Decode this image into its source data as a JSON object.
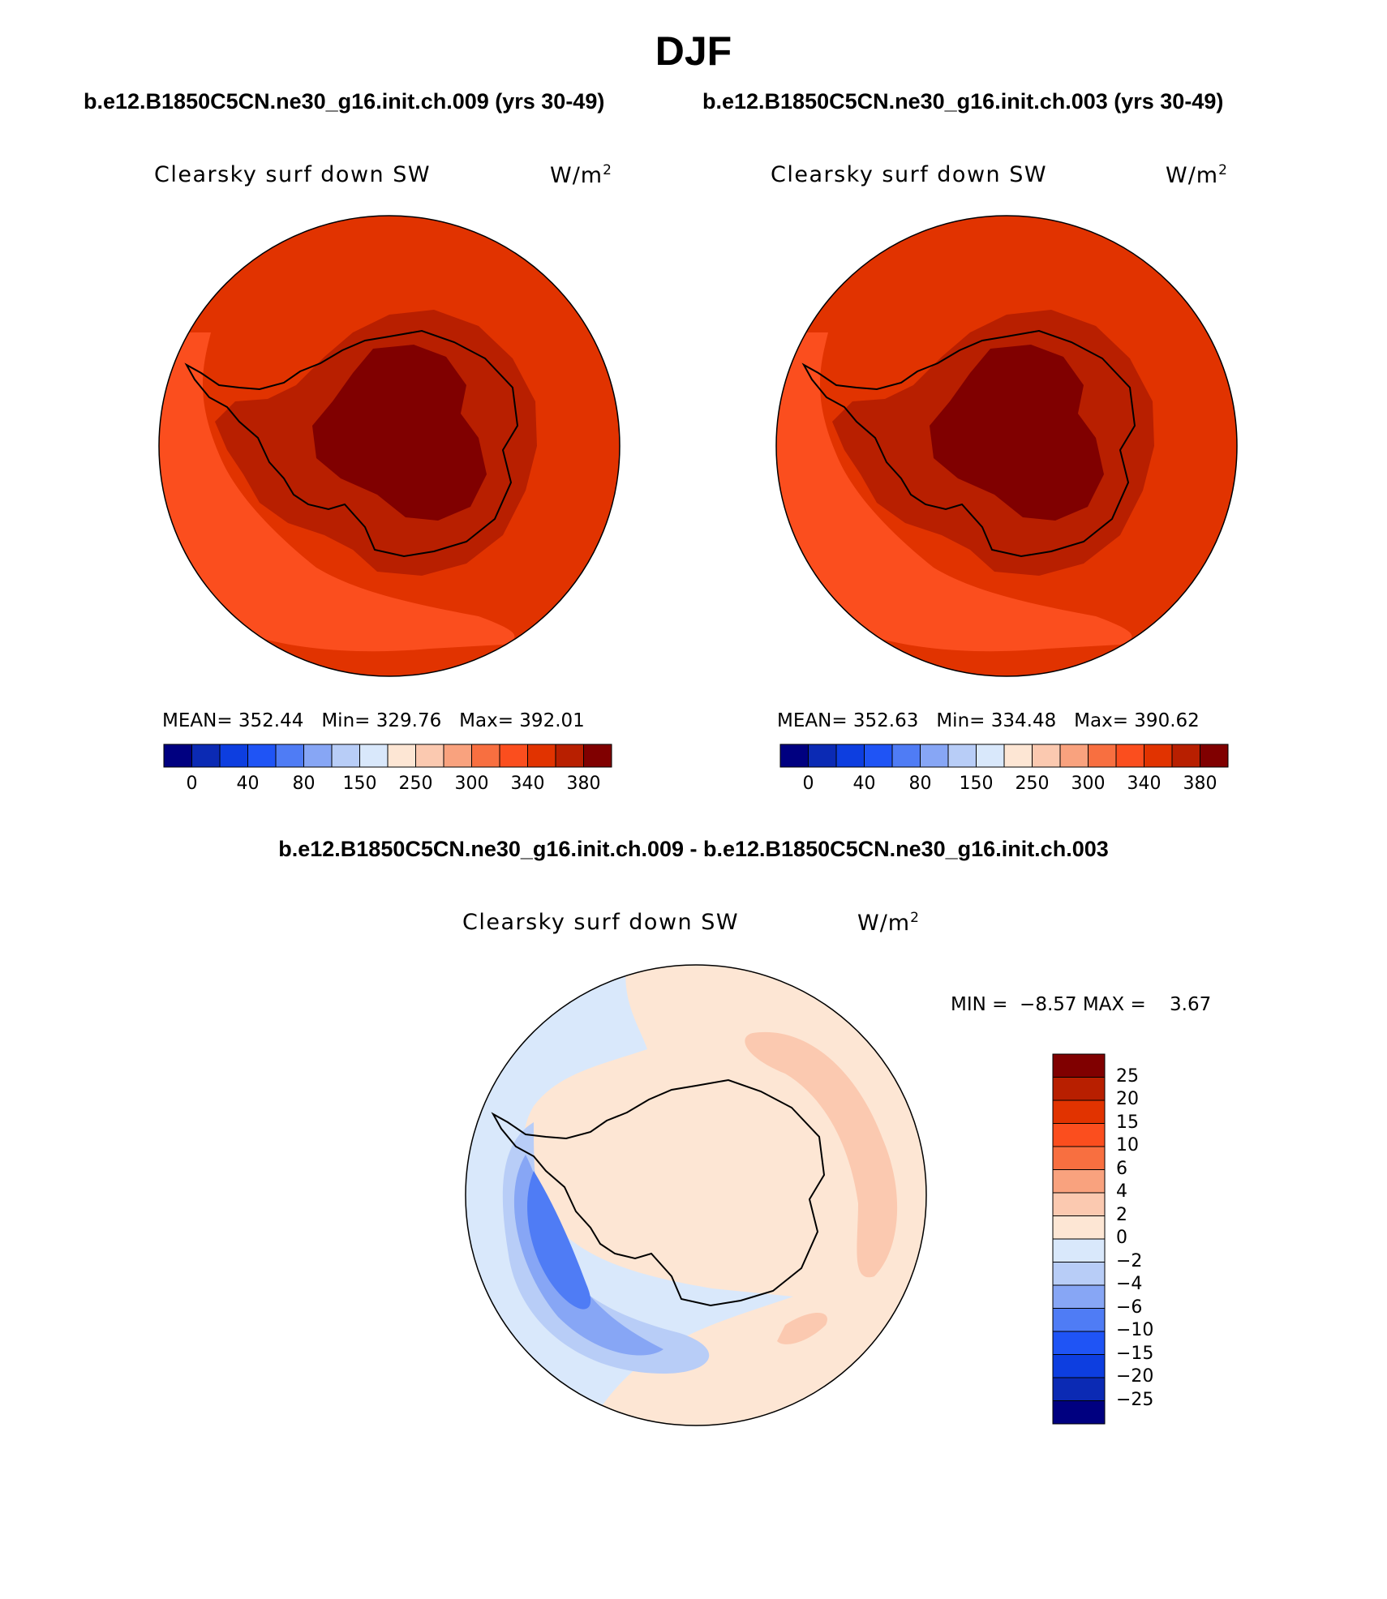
{
  "figure": {
    "title": "DJF",
    "left_case": "b.e12.B1850C5CN.ne30_g16.init.ch.009 (yrs 30-49)",
    "right_case": "b.e12.B1850C5CN.ne30_g16.init.ch.003 (yrs 30-49)",
    "diff_title": "b.e12.B1850C5CN.ne30_g16.init.ch.009 - b.e12.B1850C5CN.ne30_g16.init.ch.003"
  },
  "colors": {
    "abs_scale": [
      "#000080",
      "#0b2ab4",
      "#0d3ee0",
      "#1f54f5",
      "#4f7cf5",
      "#87a6f5",
      "#b8cdf7",
      "#d9e8fb",
      "#fde6d4",
      "#fbc9b0",
      "#f9a27e",
      "#f86f40",
      "#fb4e1e",
      "#e13300",
      "#b81f00",
      "#800000"
    ],
    "diff_scale": [
      "#000080",
      "#0b2ab4",
      "#0d3ee0",
      "#1f54f5",
      "#4f7cf5",
      "#87a6f5",
      "#b8cdf7",
      "#d9e8fb",
      "#fde6d4",
      "#fbc9b0",
      "#f9a27e",
      "#f86f40",
      "#fb4e1e",
      "#e13300",
      "#b81f00",
      "#800000"
    ]
  },
  "chart_data": [
    {
      "type": "heatmap",
      "projection": "south-polar-stereographic",
      "variable": "Clearsky surf down SW",
      "units": "W/m",
      "units_sup": "2",
      "stats": {
        "mean_label": "MEAN=",
        "mean": "352.44",
        "min_label": "Min=",
        "min": "329.76",
        "max_label": "Max=",
        "max": "392.01"
      },
      "colorbar_ticks": [
        "0",
        "40",
        "80",
        "150",
        "250",
        "300",
        "340",
        "380"
      ],
      "regions": {
        "base": "#e13300",
        "ocean_low": "#fb4e1e",
        "coast": "#b81f00",
        "interior": "#800000"
      }
    },
    {
      "type": "heatmap",
      "projection": "south-polar-stereographic",
      "variable": "Clearsky surf down SW",
      "units": "W/m",
      "units_sup": "2",
      "stats": {
        "mean_label": "MEAN=",
        "mean": "352.63",
        "min_label": "Min=",
        "min": "334.48",
        "max_label": "Max=",
        "max": "390.62"
      },
      "colorbar_ticks": [
        "0",
        "40",
        "80",
        "150",
        "250",
        "300",
        "340",
        "380"
      ],
      "regions": {
        "base": "#e13300",
        "ocean_low": "#fb4e1e",
        "coast": "#b81f00",
        "interior": "#800000"
      }
    },
    {
      "type": "heatmap",
      "projection": "south-polar-stereographic",
      "variable": "Clearsky surf down SW",
      "units": "W/m",
      "units_sup": "2",
      "stats": {
        "min_label": "MIN =",
        "min": "−8.57",
        "max_label": "MAX =",
        "max": "3.67"
      },
      "colorbar_ticks": [
        "25",
        "20",
        "15",
        "10",
        "6",
        "4",
        "2",
        "0",
        "−2",
        "−4",
        "−6",
        "−10",
        "−15",
        "−20",
        "−25"
      ],
      "regions": {
        "base": "#fde6d4",
        "neg_light": "#d9e8fb",
        "neg_mid": "#b8cdf7",
        "neg_strong": "#87a6f5",
        "neg_core": "#4f7cf5",
        "pos_mid": "#fbc9b0"
      }
    }
  ]
}
